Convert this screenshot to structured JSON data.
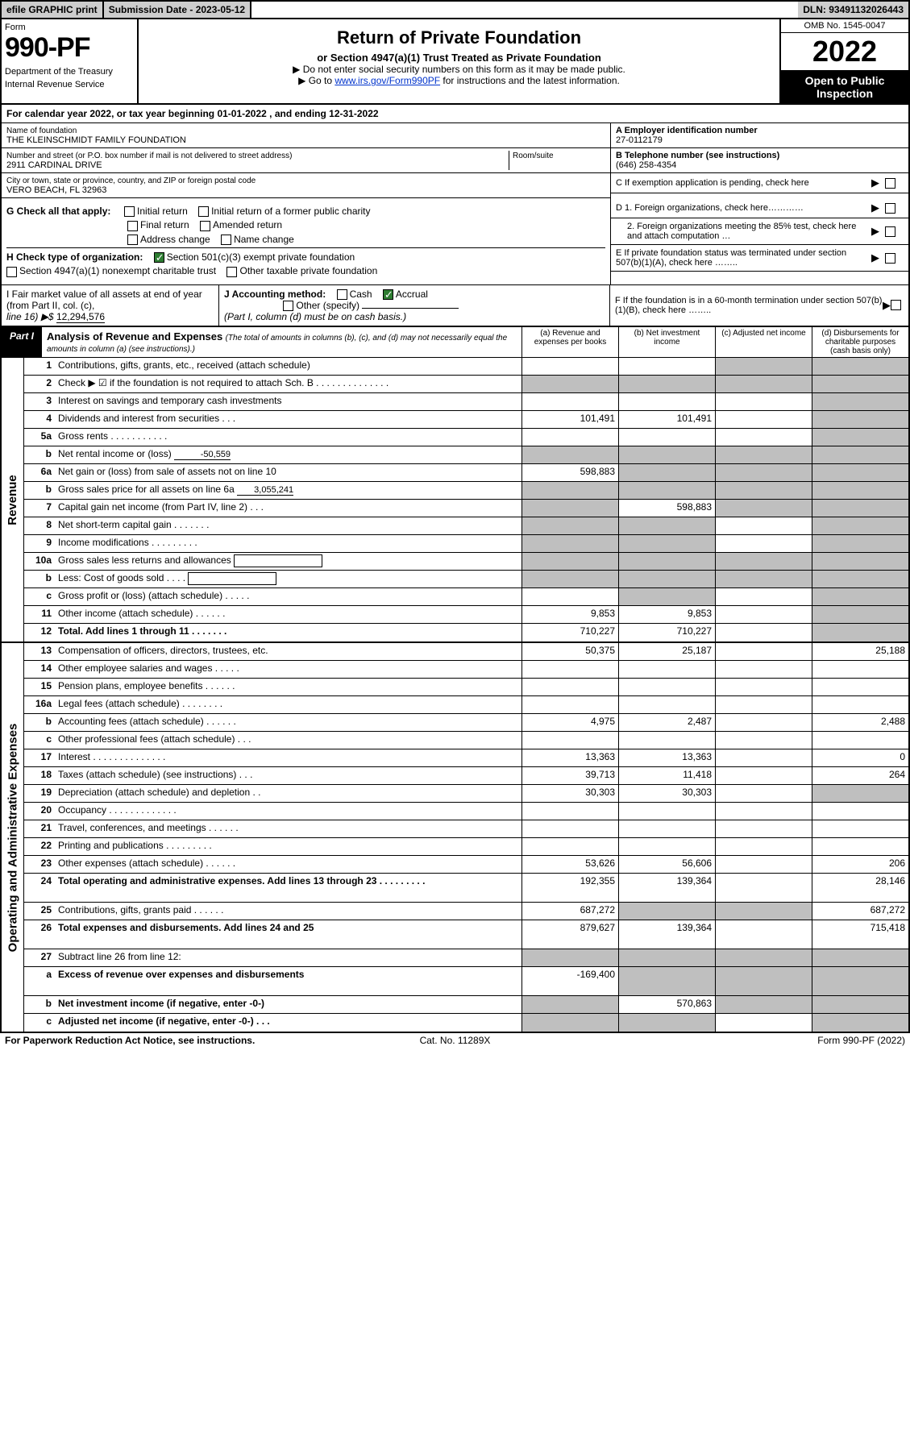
{
  "top": {
    "efile": "efile GRAPHIC print",
    "submission": "Submission Date - 2023-05-12",
    "dln": "DLN: 93491132026443"
  },
  "header": {
    "form_label": "Form",
    "form_number": "990-PF",
    "dept1": "Department of the Treasury",
    "dept2": "Internal Revenue Service",
    "title": "Return of Private Foundation",
    "subtitle": "or Section 4947(a)(1) Trust Treated as Private Foundation",
    "note1": "▶ Do not enter social security numbers on this form as it may be made public.",
    "note2_pre": "▶ Go to ",
    "note2_link": "www.irs.gov/Form990PF",
    "note2_post": " for instructions and the latest information.",
    "omb": "OMB No. 1545-0047",
    "year": "2022",
    "inspection": "Open to Public Inspection"
  },
  "calyear": "For calendar year 2022, or tax year beginning 01-01-2022                    , and ending 12-31-2022",
  "info": {
    "name_label": "Name of foundation",
    "name": "THE KLEINSCHMIDT FAMILY FOUNDATION",
    "addr_label": "Number and street (or P.O. box number if mail is not delivered to street address)",
    "addr": "2911 CARDINAL DRIVE",
    "room_label": "Room/suite",
    "city_label": "City or town, state or province, country, and ZIP or foreign postal code",
    "city": "VERO BEACH, FL  32963",
    "ein_label": "A Employer identification number",
    "ein": "27-0112179",
    "phone_label": "B Telephone number (see instructions)",
    "phone": "(646) 258-4354",
    "c_label": "C If exemption application is pending, check here"
  },
  "g": {
    "label": "G Check all that apply:",
    "opts": [
      "Initial return",
      "Initial return of a former public charity",
      "Final return",
      "Amended return",
      "Address change",
      "Name change"
    ]
  },
  "h": {
    "label": "H Check type of organization:",
    "o1": "Section 501(c)(3) exempt private foundation",
    "o2": "Section 4947(a)(1) nonexempt charitable trust",
    "o3": "Other taxable private foundation"
  },
  "d": {
    "d1": "D 1. Foreign organizations, check here…………",
    "d2": "2. Foreign organizations meeting the 85% test, check here and attach computation …"
  },
  "e": "E  If private foundation status was terminated under section 507(b)(1)(A), check here ……..",
  "i": {
    "label": "I Fair market value of all assets at end of year (from Part II, col. (c),",
    "line": "line 16) ▶$",
    "value": "12,294,576"
  },
  "j": {
    "label": "J Accounting method:",
    "cash": "Cash",
    "accrual": "Accrual",
    "other": "Other (specify)",
    "note": "(Part I, column (d) must be on cash basis.)"
  },
  "f": "F  If the foundation is in a 60-month termination under section 507(b)(1)(B), check here ……..",
  "part1": {
    "label": "Part I",
    "title": "Analysis of Revenue and Expenses",
    "note": "(The total of amounts in columns (b), (c), and (d) may not necessarily equal the amounts in column (a) (see instructions).)",
    "cola": "(a)   Revenue and expenses per books",
    "colb": "(b)   Net investment income",
    "colc": "(c)   Adjusted net income",
    "cold": "(d)   Disbursements for charitable purposes (cash basis only)"
  },
  "side_revenue": "Revenue",
  "side_expenses": "Operating and Administrative Expenses",
  "rows_rev": [
    {
      "n": "1",
      "d": "Contributions, gifts, grants, etc., received (attach schedule)",
      "a": "",
      "b": "",
      "grey_c": true,
      "grey_d": true
    },
    {
      "n": "2",
      "d": "Check ▶ ☑ if the foundation is not required to attach Sch. B   .   .   .   .   .   .   .   .   .   .   .   .   .   .",
      "a": "",
      "b": "",
      "grey_c": true,
      "grey_d": true,
      "grey_a": true,
      "grey_b": true
    },
    {
      "n": "3",
      "d": "Interest on savings and temporary cash investments",
      "a": "",
      "b": "",
      "c": "",
      "grey_d": true
    },
    {
      "n": "4",
      "d": "Dividends and interest from securities    .   .   .",
      "a": "101,491",
      "b": "101,491",
      "c": "",
      "grey_d": true
    },
    {
      "n": "5a",
      "d": "Gross rents    .   .   .   .   .   .   .   .   .   .   .",
      "a": "",
      "b": "",
      "c": "",
      "grey_d": true
    },
    {
      "n": "b",
      "d": "Net rental income or (loss)",
      "inline": "-50,559",
      "a": "",
      "b": "",
      "grey_a": true,
      "grey_b": true,
      "grey_c": true,
      "grey_d": true
    },
    {
      "n": "6a",
      "d": "Net gain or (loss) from sale of assets not on line 10",
      "a": "598,883",
      "grey_b": true,
      "grey_c": true,
      "grey_d": true
    },
    {
      "n": "b",
      "d": "Gross sales price for all assets on line 6a",
      "inline": "3,055,241",
      "grey_a": true,
      "grey_b": true,
      "grey_c": true,
      "grey_d": true
    },
    {
      "n": "7",
      "d": "Capital gain net income (from Part IV, line 2)   .   .   .",
      "grey_a": true,
      "b": "598,883",
      "grey_c": true,
      "grey_d": true
    },
    {
      "n": "8",
      "d": "Net short-term capital gain   .   .   .   .   .   .   .",
      "grey_a": true,
      "grey_b": true,
      "c": "",
      "grey_d": true
    },
    {
      "n": "9",
      "d": "Income modifications   .   .   .   .   .   .   .   .   .",
      "grey_a": true,
      "grey_b": true,
      "c": "",
      "grey_d": true
    },
    {
      "n": "10a",
      "d": "Gross sales less returns and allowances",
      "box": true,
      "grey_a": true,
      "grey_b": true,
      "grey_c": true,
      "grey_d": true
    },
    {
      "n": "b",
      "d": "Less: Cost of goods sold    .   .   .   .",
      "box": true,
      "grey_a": true,
      "grey_b": true,
      "grey_c": true,
      "grey_d": true
    },
    {
      "n": "c",
      "d": "Gross profit or (loss) (attach schedule)    .   .   .   .   .",
      "a": "",
      "grey_b": true,
      "c": "",
      "grey_d": true
    },
    {
      "n": "11",
      "d": "Other income (attach schedule)   .   .   .   .   .   .",
      "a": "9,853",
      "b": "9,853",
      "c": "",
      "grey_d": true
    },
    {
      "n": "12",
      "d": "Total. Add lines 1 through 11   .   .   .   .   .   .   .",
      "bold": true,
      "a": "710,227",
      "b": "710,227",
      "c": "",
      "grey_d": true
    }
  ],
  "rows_exp": [
    {
      "n": "13",
      "d": "Compensation of officers, directors, trustees, etc.",
      "a": "50,375",
      "b": "25,187",
      "c": "",
      "dd": "25,188"
    },
    {
      "n": "14",
      "d": "Other employee salaries and wages   .   .   .   .   .",
      "a": "",
      "b": "",
      "c": "",
      "dd": ""
    },
    {
      "n": "15",
      "d": "Pension plans, employee benefits   .   .   .   .   .   .",
      "a": "",
      "b": "",
      "c": "",
      "dd": ""
    },
    {
      "n": "16a",
      "d": "Legal fees (attach schedule)   .   .   .   .   .   .   .   .",
      "a": "",
      "b": "",
      "c": "",
      "dd": ""
    },
    {
      "n": "b",
      "d": "Accounting fees (attach schedule)   .   .   .   .   .   .",
      "a": "4,975",
      "b": "2,487",
      "c": "",
      "dd": "2,488"
    },
    {
      "n": "c",
      "d": "Other professional fees (attach schedule)   .   .   .",
      "a": "",
      "b": "",
      "c": "",
      "dd": ""
    },
    {
      "n": "17",
      "d": "Interest   .   .   .   .   .   .   .   .   .   .   .   .   .   .",
      "a": "13,363",
      "b": "13,363",
      "c": "",
      "dd": "0"
    },
    {
      "n": "18",
      "d": "Taxes (attach schedule) (see instructions)   .   .   .",
      "a": "39,713",
      "b": "11,418",
      "c": "",
      "dd": "264"
    },
    {
      "n": "19",
      "d": "Depreciation (attach schedule) and depletion   .   .",
      "a": "30,303",
      "b": "30,303",
      "c": "",
      "grey_d": true
    },
    {
      "n": "20",
      "d": "Occupancy   .   .   .   .   .   .   .   .   .   .   .   .   .",
      "a": "",
      "b": "",
      "c": "",
      "dd": ""
    },
    {
      "n": "21",
      "d": "Travel, conferences, and meetings   .   .   .   .   .   .",
      "a": "",
      "b": "",
      "c": "",
      "dd": ""
    },
    {
      "n": "22",
      "d": "Printing and publications   .   .   .   .   .   .   .   .   .",
      "a": "",
      "b": "",
      "c": "",
      "dd": ""
    },
    {
      "n": "23",
      "d": "Other expenses (attach schedule)   .   .   .   .   .   .",
      "a": "53,626",
      "b": "56,606",
      "c": "",
      "dd": "206"
    },
    {
      "n": "24",
      "d": "Total operating and administrative expenses. Add lines 13 through 23   .   .   .   .   .   .   .   .   .",
      "bold": true,
      "a": "192,355",
      "b": "139,364",
      "c": "",
      "dd": "28,146",
      "tall": true
    },
    {
      "n": "25",
      "d": "Contributions, gifts, grants paid   .   .   .   .   .   .",
      "a": "687,272",
      "grey_b": true,
      "grey_c": true,
      "dd": "687,272"
    },
    {
      "n": "26",
      "d": "Total expenses and disbursements. Add lines 24 and 25",
      "bold": true,
      "a": "879,627",
      "b": "139,364",
      "c": "",
      "dd": "715,418",
      "tall": true
    },
    {
      "n": "27",
      "d": "Subtract line 26 from line 12:",
      "grey_a": true,
      "grey_b": true,
      "grey_c": true,
      "grey_d": true
    },
    {
      "n": "a",
      "d": "Excess of revenue over expenses and disbursements",
      "bold": true,
      "a": "-169,400",
      "grey_b": true,
      "grey_c": true,
      "grey_d": true,
      "tall": true
    },
    {
      "n": "b",
      "d": "Net investment income (if negative, enter -0-)",
      "bold": true,
      "grey_a": true,
      "b": "570,863",
      "grey_c": true,
      "grey_d": true
    },
    {
      "n": "c",
      "d": "Adjusted net income (if negative, enter -0-)   .   .   .",
      "bold": true,
      "grey_a": true,
      "grey_b": true,
      "c": "",
      "grey_d": true
    }
  ],
  "footer": {
    "left": "For Paperwork Reduction Act Notice, see instructions.",
    "mid": "Cat. No. 11289X",
    "right": "Form 990-PF (2022)"
  }
}
